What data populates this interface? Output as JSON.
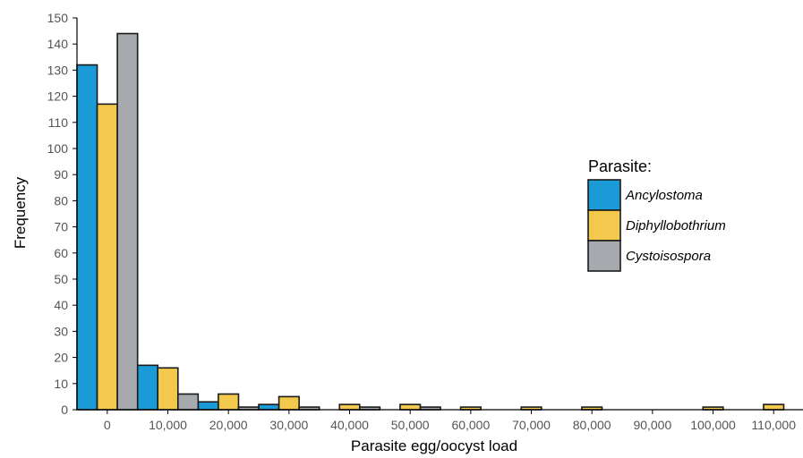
{
  "chart_data": {
    "type": "bar",
    "xlabel": "Parasite egg/oocyst load",
    "ylabel": "Frequency",
    "ylim": [
      0,
      150
    ],
    "y_ticks": [
      0,
      10,
      20,
      30,
      40,
      50,
      60,
      70,
      80,
      90,
      100,
      110,
      120,
      130,
      140,
      150
    ],
    "categories": [
      "0",
      "10,000",
      "20,000",
      "30,000",
      "40,000",
      "50,000",
      "60,000",
      "70,000",
      "80,000",
      "90,000",
      "100,000",
      "110,000"
    ],
    "legend": {
      "title": "Parasite:",
      "position": "right"
    },
    "series": [
      {
        "name": "Ancylostoma",
        "color": "#1a9ad6",
        "values": [
          132,
          17,
          3,
          2,
          0,
          0,
          0,
          0,
          0,
          0,
          0,
          0
        ]
      },
      {
        "name": "Diphyllobothrium",
        "color": "#f2c94c",
        "values": [
          117,
          16,
          6,
          5,
          2,
          2,
          1,
          1,
          1,
          0,
          1,
          2
        ]
      },
      {
        "name": "Cystoisospora",
        "color": "#a6a9ae",
        "values": [
          144,
          6,
          1,
          1,
          1,
          1,
          0,
          0,
          0,
          0,
          0,
          0
        ]
      }
    ]
  }
}
